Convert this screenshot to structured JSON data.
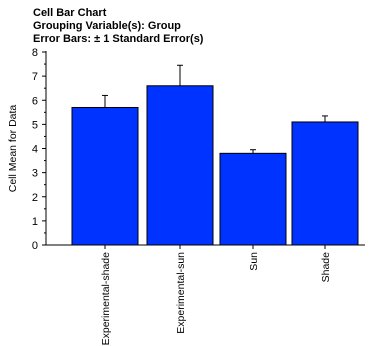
{
  "chart_data": {
    "type": "bar",
    "title_lines": [
      "Cell Bar Chart",
      "Grouping Variable(s): Group",
      "Error Bars: ± 1 Standard Error(s)"
    ],
    "xlabel": "",
    "ylabel": "Cell Mean for Data",
    "ylim": [
      0,
      8
    ],
    "y_ticks": [
      0,
      1,
      2,
      3,
      4,
      5,
      6,
      7,
      8
    ],
    "categories": [
      "Experimental-shade",
      "Experimental-sun",
      "Sun",
      "Shade"
    ],
    "values": [
      5.7,
      6.6,
      3.8,
      5.1
    ],
    "error_bars": [
      0.5,
      0.85,
      0.15,
      0.25
    ],
    "error_bars_direction": "upper only",
    "grid": false,
    "legend": "none",
    "colors": {
      "bar_fill": "#0033ff",
      "bar_stroke": "#000000",
      "axis": "#000000"
    }
  }
}
